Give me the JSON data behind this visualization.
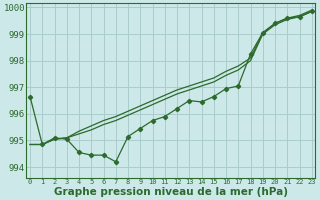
{
  "title": "Graphe pression niveau de la mer (hPa)",
  "bg_color": "#cce8e8",
  "grid_color": "#aacccc",
  "line_color": "#2d6a2d",
  "ylim": [
    993.6,
    1000.15
  ],
  "xlim": [
    -0.3,
    23.3
  ],
  "yticks": [
    994,
    995,
    996,
    997,
    998,
    999,
    1000
  ],
  "xticks": [
    0,
    1,
    2,
    3,
    4,
    5,
    6,
    7,
    8,
    9,
    10,
    11,
    12,
    13,
    14,
    15,
    16,
    17,
    18,
    19,
    20,
    21,
    22,
    23
  ],
  "smooth_line1": [
    994.85,
    994.85,
    995.05,
    995.1,
    995.25,
    995.4,
    995.6,
    995.75,
    995.95,
    996.15,
    996.35,
    996.55,
    996.75,
    996.9,
    997.05,
    997.2,
    997.45,
    997.65,
    998.0,
    999.0,
    999.35,
    999.55,
    999.65,
    999.85
  ],
  "smooth_line2": [
    994.85,
    994.85,
    995.05,
    995.1,
    995.35,
    995.55,
    995.75,
    995.9,
    996.1,
    996.3,
    996.5,
    996.7,
    996.9,
    997.05,
    997.2,
    997.35,
    997.6,
    997.8,
    998.1,
    999.05,
    999.4,
    999.6,
    999.7,
    999.9
  ],
  "marker_line": [
    996.65,
    994.85,
    995.1,
    995.05,
    994.55,
    994.45,
    994.45,
    994.2,
    995.15,
    995.45,
    995.75,
    995.9,
    996.2,
    996.5,
    996.45,
    996.65,
    996.95,
    997.05,
    998.25,
    999.05,
    999.4,
    999.6,
    999.65,
    999.85
  ]
}
